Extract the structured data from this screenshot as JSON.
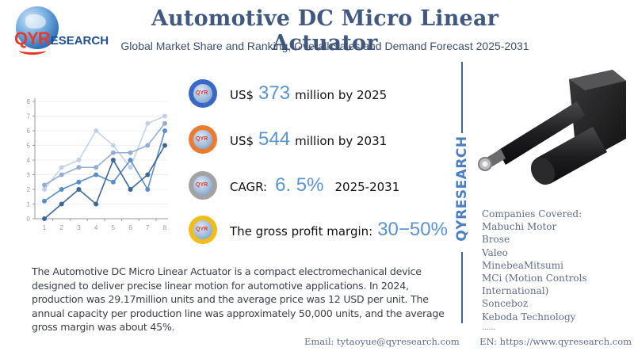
{
  "brand": {
    "logo_q": "QY",
    "logo_r": "R",
    "logo_rest": "ESEARCH",
    "vertical_text": "QYRESEARCH"
  },
  "header": {
    "title": "Automotive DC Micro Linear Actuator",
    "subtitle": "Global Market Share and Ranking, Overall Sales and Demand Forecast 2025-2031"
  },
  "stats": [
    {
      "icon": "globe-badge-blue",
      "prefix": "US$",
      "value": "373",
      "suffix": "million by 2025",
      "color": "#3b68c4"
    },
    {
      "icon": "globe-badge-orange",
      "prefix": "US$",
      "value": "544",
      "suffix": "million by 2031",
      "color": "#ea7b2f"
    },
    {
      "icon": "globe-badge-gray",
      "prefix": "CAGR:",
      "value": "6. 5%",
      "suffix": "2025-2031",
      "color": "#a3a3a3"
    },
    {
      "icon": "globe-badge-yellow",
      "prefix": "The gross profit margin:",
      "value": "30−50%",
      "suffix": "",
      "color": "#f0bd1b"
    }
  ],
  "badge_label": "QYR",
  "companies": {
    "heading": "Companies Covered:",
    "items": [
      "Mabuchi Motor",
      "Brose",
      "Valeo",
      "MinebeaMitsumi",
      "MCi (Motion Controls",
      "International)",
      "Sonceboz",
      "Keboda Technology",
      "......"
    ]
  },
  "description": "The Automotive DC Micro Linear Actuator is a compact electromechanical device designed to deliver precise linear motion for automotive applications. In 2024, production was 29.17million units and the average price was 12 USD per unit. The annual capacity per production line was approximately 50,000 units, and the average gross margin was about 45%.",
  "footer": {
    "email_label": "Email:",
    "email": "tytaoyue@qyresearch.com",
    "web_label": "EN:",
    "web": "https://www.qyresearch.com"
  },
  "chart_data": {
    "type": "line",
    "title": "",
    "xlabel": "",
    "ylabel": "",
    "x": [
      1,
      2,
      3,
      4,
      5,
      6,
      7,
      8
    ],
    "xlim": [
      1,
      8
    ],
    "ylim": [
      0,
      8
    ],
    "yticks": [
      0,
      1,
      2,
      3,
      4,
      5,
      6,
      7,
      8
    ],
    "grid": true,
    "legend": "none",
    "series": [
      {
        "name": "series-1",
        "color": "#c3d1e7",
        "values": [
          2,
          3.5,
          4,
          6,
          5,
          3.5,
          6.5,
          7
        ]
      },
      {
        "name": "series-2",
        "color": "#96abd4",
        "values": [
          2.3,
          3,
          3.5,
          3.5,
          4.5,
          4.5,
          5,
          6.5
        ]
      },
      {
        "name": "series-3",
        "color": "#5a8ec6",
        "values": [
          1.2,
          2,
          2.5,
          3,
          2.5,
          4,
          2,
          6
        ]
      },
      {
        "name": "series-4",
        "color": "#3d6696",
        "values": [
          0,
          1,
          2,
          1,
          4,
          2,
          3,
          5
        ]
      }
    ]
  }
}
